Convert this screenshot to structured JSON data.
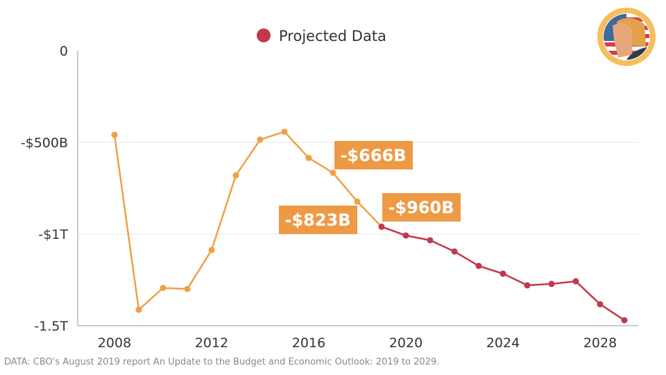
{
  "chart_data": {
    "type": "line",
    "title": "",
    "xlabel": "",
    "ylabel": "",
    "x": [
      2008,
      2009,
      2010,
      2011,
      2012,
      2013,
      2014,
      2015,
      2016,
      2017,
      2018,
      2019,
      2020,
      2021,
      2022,
      2023,
      2024,
      2025,
      2026,
      2027,
      2028,
      2029
    ],
    "series": [
      {
        "name": "",
        "color": "#F0A045",
        "x": [
          2008,
          2009,
          2010,
          2011,
          2012,
          2013,
          2014,
          2015,
          2016,
          2017,
          2018,
          2019
        ],
        "values": [
          -459,
          -1413,
          -1294,
          -1300,
          -1087,
          -680,
          -485,
          -442,
          -585,
          -666,
          -823,
          -960
        ]
      },
      {
        "name": "Projected Data",
        "color": "#C0394A",
        "x": [
          2019,
          2020,
          2021,
          2022,
          2023,
          2024,
          2025,
          2026,
          2027,
          2028,
          2029
        ],
        "values": [
          -960,
          -1008,
          -1034,
          -1095,
          -1174,
          -1216,
          -1280,
          -1272,
          -1258,
          -1383,
          -1470
        ]
      }
    ],
    "ylim": [
      -1500,
      0
    ],
    "xlim": [
      2006.5,
      2029.5
    ],
    "yticks": [
      {
        "value": 0,
        "label": "0"
      },
      {
        "value": -500,
        "label": "-$500B"
      },
      {
        "value": -1000,
        "label": "-$1T"
      },
      {
        "value": -1500,
        "label": "-1.5T"
      }
    ],
    "xticks": [
      {
        "value": 2008,
        "label": "2008"
      },
      {
        "value": 2012,
        "label": "2012"
      },
      {
        "value": 2016,
        "label": "2016"
      },
      {
        "value": 2020,
        "label": "2020"
      },
      {
        "value": 2024,
        "label": "2024"
      },
      {
        "value": 2028,
        "label": "2028"
      }
    ],
    "annotations": [
      {
        "label": "-$666B",
        "x": 2017,
        "value": -666
      },
      {
        "label": "-$823B",
        "x": 2018,
        "value": -823
      },
      {
        "label": "-$960B",
        "x": 2019,
        "value": -960
      }
    ],
    "annotation_color": "#EE9A45",
    "grid": true,
    "legend": {
      "position": "top-center",
      "label": "Projected Data",
      "color": "#C0394A"
    }
  },
  "source": "DATA: CBO's August 2019 report An Update to the Budget and Economic Outlook: 2019 to 2029.",
  "logo": {
    "name": "trump-flag-badge"
  }
}
